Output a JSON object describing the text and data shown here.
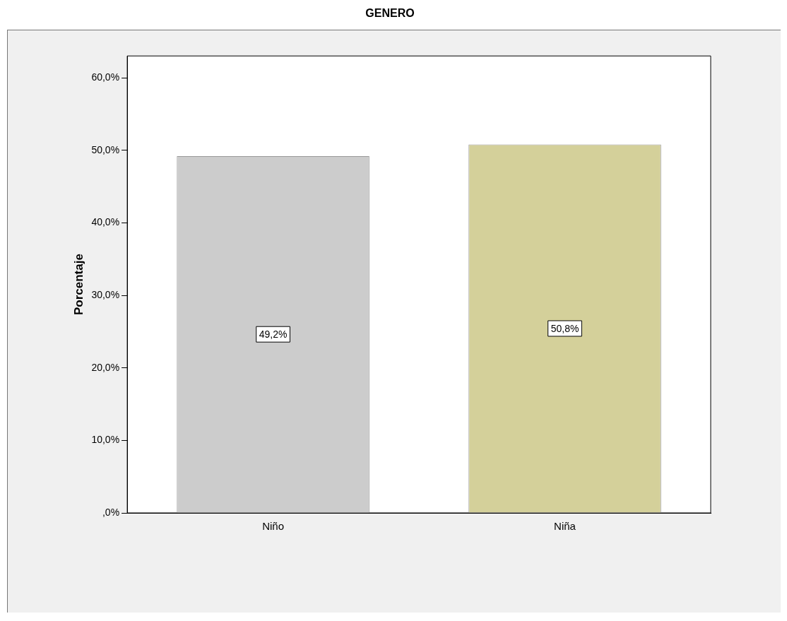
{
  "chart_data": {
    "type": "bar",
    "title": "GENERO",
    "ylabel": "Porcentaje",
    "categories": [
      "Niño",
      "Niña"
    ],
    "values": [
      49.2,
      50.8
    ],
    "colors": [
      "#cccccc",
      "#d4d09a"
    ],
    "value_labels": [
      "49,2%",
      "50,8%"
    ],
    "ylim": [
      0,
      63
    ],
    "yticks": [
      {
        "value": 0,
        "label": ",0%"
      },
      {
        "value": 10,
        "label": "10,0%"
      },
      {
        "value": 20,
        "label": "20,0%"
      },
      {
        "value": 30,
        "label": "30,0%"
      },
      {
        "value": 40,
        "label": "40,0%"
      },
      {
        "value": 50,
        "label": "50,0%"
      },
      {
        "value": 60,
        "label": "60,0%"
      }
    ]
  }
}
